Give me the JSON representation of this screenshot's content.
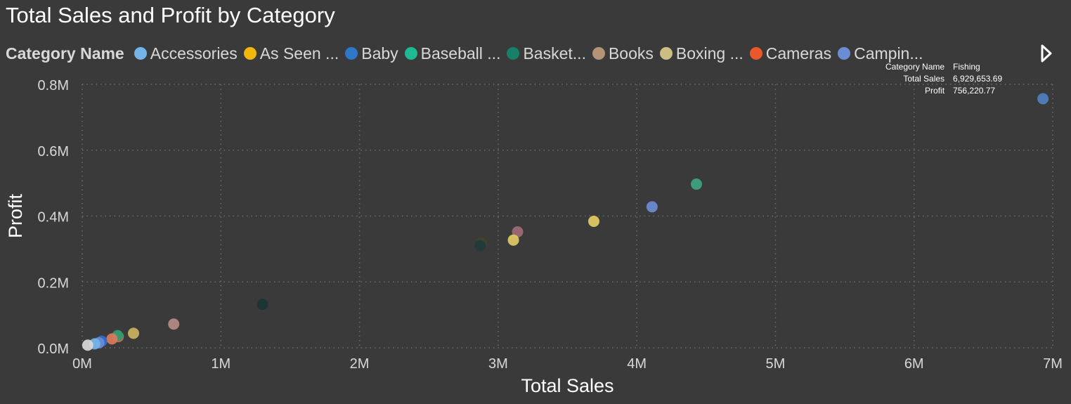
{
  "colors": {
    "background": "#3a3a3a",
    "text": "#ffffff",
    "legend_text": "#d8d8d8",
    "grid": "#6e6e6e"
  },
  "chart_data": {
    "type": "scatter",
    "title": "Total Sales and Profit by Category",
    "xlabel": "Total Sales",
    "ylabel": "Profit",
    "xlim": [
      0,
      7000000
    ],
    "ylim": [
      0,
      800000
    ],
    "x_ticks": [
      {
        "value": 0,
        "label": "0M"
      },
      {
        "value": 1000000,
        "label": "1M"
      },
      {
        "value": 2000000,
        "label": "2M"
      },
      {
        "value": 3000000,
        "label": "3M"
      },
      {
        "value": 4000000,
        "label": "4M"
      },
      {
        "value": 5000000,
        "label": "5M"
      },
      {
        "value": 6000000,
        "label": "6M"
      },
      {
        "value": 7000000,
        "label": "7M"
      }
    ],
    "y_ticks": [
      {
        "value": 0,
        "label": "0.0M"
      },
      {
        "value": 200000,
        "label": "0.2M"
      },
      {
        "value": 400000,
        "label": "0.4M"
      },
      {
        "value": 600000,
        "label": "0.6M"
      },
      {
        "value": 800000,
        "label": "0.8M"
      }
    ],
    "grid": true,
    "legend": {
      "title": "Category Name",
      "placement": "top",
      "items": [
        {
          "label": "Accessories",
          "color": "#74b4e6"
        },
        {
          "label": "As Seen ...",
          "color": "#f2b70c"
        },
        {
          "label": "Baby",
          "color": "#2f78c8"
        },
        {
          "label": "Baseball ...",
          "color": "#1fb994"
        },
        {
          "label": "Basket...",
          "color": "#168069"
        },
        {
          "label": "Books",
          "color": "#b49476"
        },
        {
          "label": "Boxing ...",
          "color": "#cbbd84"
        },
        {
          "label": "Cameras",
          "color": "#e9572b"
        },
        {
          "label": "Campin...",
          "color": "#6b8dd2"
        }
      ]
    },
    "points": [
      {
        "x": 6929653.69,
        "y": 756220.77,
        "color": "#4f7fc0"
      },
      {
        "x": 4430000,
        "y": 497000,
        "color": "#3fa582"
      },
      {
        "x": 4110000,
        "y": 428000,
        "color": "#6b8dd2"
      },
      {
        "x": 3690000,
        "y": 384000,
        "color": "#e4cb63"
      },
      {
        "x": 3140000,
        "y": 352000,
        "color": "#a26a7a"
      },
      {
        "x": 3110000,
        "y": 327000,
        "color": "#e4cb63"
      },
      {
        "x": 2880000,
        "y": 318000,
        "color": "#41432e"
      },
      {
        "x": 2870000,
        "y": 310000,
        "color": "#1f3b3c"
      },
      {
        "x": 1300000,
        "y": 132000,
        "color": "#1a3638"
      },
      {
        "x": 660000,
        "y": 72000,
        "color": "#b58d88"
      },
      {
        "x": 370000,
        "y": 44000,
        "color": "#cbb45f"
      },
      {
        "x": 260000,
        "y": 34000,
        "color": "#ce6d52"
      },
      {
        "x": 255000,
        "y": 37000,
        "color": "#2b9c72"
      },
      {
        "x": 215000,
        "y": 27000,
        "color": "#d97a60"
      },
      {
        "x": 140000,
        "y": 20000,
        "color": "#2f6fd0"
      },
      {
        "x": 120000,
        "y": 15000,
        "color": "#6b8dd2"
      },
      {
        "x": 90000,
        "y": 12000,
        "color": "#74b4e6"
      },
      {
        "x": 40000,
        "y": 8000,
        "color": "#d9d9d9"
      }
    ],
    "tooltip": {
      "fields": [
        {
          "key": "Category Name",
          "value": "Fishing"
        },
        {
          "key": "Total Sales",
          "value": "6,929,653.69"
        },
        {
          "key": "Profit",
          "value": "756,220.77"
        }
      ]
    }
  }
}
